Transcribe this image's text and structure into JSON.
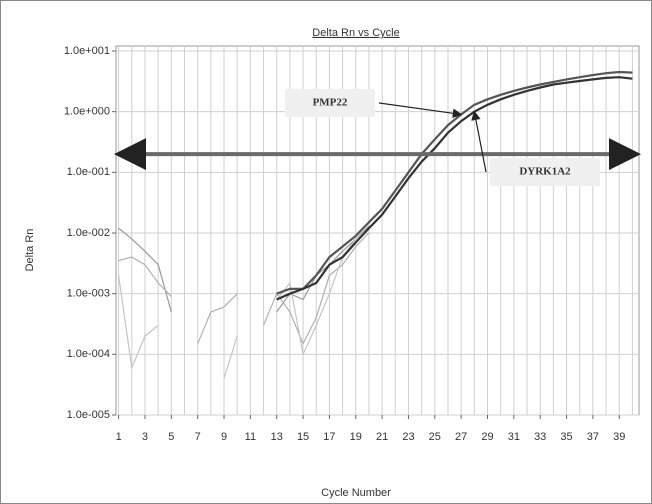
{
  "chart_data": {
    "type": "line",
    "title": "Delta Rn vs Cycle",
    "xlabel": "Cycle Number",
    "ylabel": "Delta Rn",
    "log_y": true,
    "grid": true,
    "x": [
      1,
      2,
      3,
      4,
      5,
      6,
      7,
      8,
      9,
      10,
      11,
      12,
      13,
      14,
      15,
      16,
      17,
      18,
      19,
      20,
      21,
      22,
      23,
      24,
      25,
      26,
      27,
      28,
      29,
      30,
      31,
      32,
      33,
      34,
      35,
      36,
      37,
      38,
      39,
      40
    ],
    "xlim": [
      0.8,
      40.5
    ],
    "xticks": [
      1,
      3,
      5,
      7,
      9,
      11,
      13,
      15,
      17,
      19,
      21,
      23,
      25,
      27,
      29,
      31,
      33,
      35,
      37,
      39
    ],
    "ylim": [
      1e-05,
      10
    ],
    "yticks": [
      {
        "value": 1e-05,
        "label": "1.0e-005"
      },
      {
        "value": 0.0001,
        "label": "1.0e-004"
      },
      {
        "value": 0.001,
        "label": "1.0e-003"
      },
      {
        "value": 0.01,
        "label": "1.0e-002"
      },
      {
        "value": 0.1,
        "label": "1.0e-001"
      },
      {
        "value": 1,
        "label": "1.0e+000"
      },
      {
        "value": 10,
        "label": "1.0e+001"
      }
    ],
    "threshold": 0.2,
    "threshold_color": "#6a6a6a",
    "series": [
      {
        "color": "#999999",
        "values": [
          0.012,
          0.008,
          0.005,
          0.003,
          0.0005,
          null,
          null,
          null,
          null,
          null,
          null,
          null,
          0.0005,
          0.001,
          0.0008,
          0.002,
          0.003,
          0.005,
          0.008,
          0.013,
          null,
          null,
          null,
          null,
          null,
          null,
          null,
          null,
          null,
          null,
          null,
          null,
          null,
          null,
          null,
          null,
          null,
          null,
          null,
          null
        ]
      },
      {
        "color": "#b0b0b0",
        "values": [
          0.0035,
          0.004,
          0.003,
          0.0015,
          0.0009,
          null,
          0.00015,
          0.0005,
          0.0006,
          0.001,
          null,
          0.0003,
          0.001,
          0.0005,
          0.00015,
          0.0004,
          0.002,
          0.003,
          0.006,
          0.01,
          null,
          null,
          null,
          null,
          null,
          null,
          null,
          null,
          null,
          null,
          null,
          null,
          null,
          null,
          null,
          null,
          null,
          null,
          null,
          null
        ]
      },
      {
        "color": "#c4c4c4",
        "values": [
          0.002,
          6e-05,
          0.0002,
          0.0003,
          null,
          null,
          null,
          null,
          4e-05,
          0.0002,
          null,
          null,
          0.0008,
          0.0015,
          0.0001,
          0.0003,
          0.001,
          0.004,
          0.008,
          0.012,
          null,
          null,
          null,
          null,
          null,
          null,
          null,
          null,
          null,
          null,
          null,
          null,
          null,
          null,
          null,
          null,
          null,
          null,
          null,
          null
        ]
      },
      {
        "name": "PMP22",
        "color": "#555555",
        "values": [
          null,
          null,
          null,
          null,
          null,
          null,
          null,
          null,
          null,
          null,
          null,
          null,
          0.001,
          0.0012,
          0.0012,
          0.002,
          0.004,
          0.006,
          0.009,
          0.015,
          0.025,
          0.05,
          0.1,
          0.2,
          0.35,
          0.6,
          0.9,
          1.3,
          1.6,
          1.9,
          2.2,
          2.5,
          2.8,
          3.1,
          3.4,
          3.7,
          4.0,
          4.3,
          4.5,
          4.4
        ]
      },
      {
        "name": "DYRK1A2",
        "color": "#333333",
        "values": [
          null,
          null,
          null,
          null,
          null,
          null,
          null,
          null,
          null,
          null,
          null,
          null,
          0.0008,
          0.001,
          0.0012,
          0.0015,
          0.003,
          0.004,
          0.007,
          0.012,
          0.02,
          0.04,
          0.08,
          0.15,
          0.25,
          0.45,
          0.7,
          1.0,
          1.3,
          1.6,
          1.9,
          2.2,
          2.5,
          2.8,
          3.0,
          3.2,
          3.4,
          3.6,
          3.7,
          3.5
        ]
      }
    ]
  }
}
